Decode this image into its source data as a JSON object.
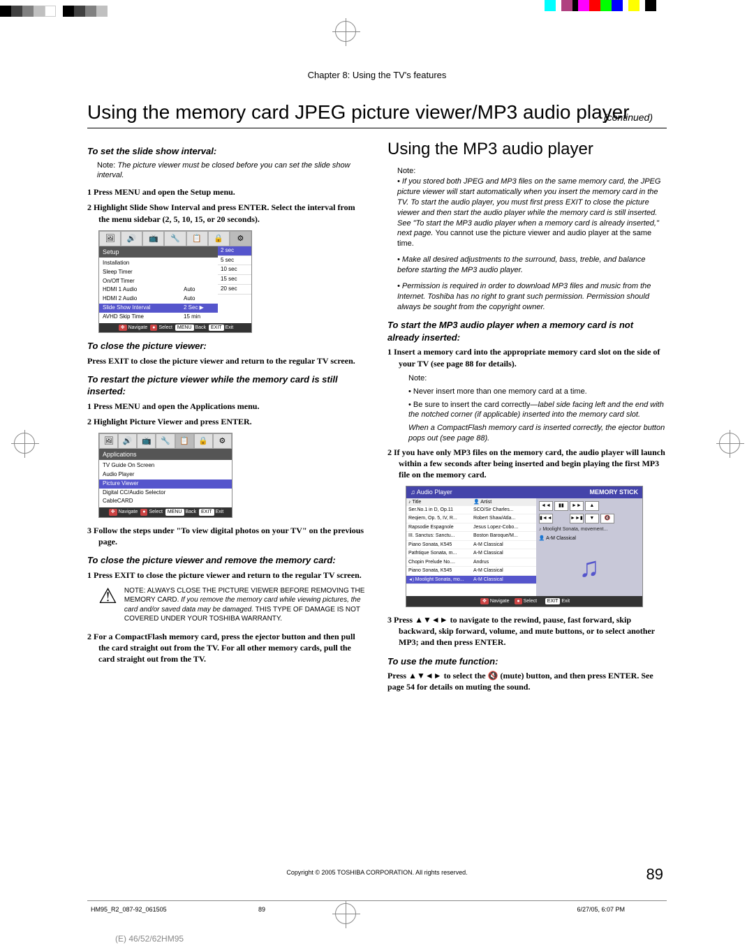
{
  "color_bars_left": [
    "#000000",
    "#404040",
    "#808080",
    "#c0c0c0",
    "#ffffff",
    "#000000",
    "#404040",
    "#808080",
    "#c0c0c0"
  ],
  "color_bars_right": [
    "#00ffff",
    "#ffffff",
    "#b04080",
    "#000000",
    "#ff00ff",
    "#ff0000",
    "#00ff00",
    "#0000ff",
    "#ffffff",
    "#ffff00",
    "#ffffff",
    "#000000"
  ],
  "chapter": "Chapter 8: Using the TV's features",
  "main_title": "Using the memory card JPEG picture viewer/MP3 audio player",
  "continued": "(continued)",
  "left": {
    "sec1_heading": "To set the slide show interval:",
    "note_label": "Note:",
    "note1": "The picture viewer must be closed before you can set the slide show interval.",
    "step1": "1 Press MENU and open the Setup menu.",
    "step2": "2 Highlight Slide Show Interval and press ENTER. Select the interval from the menu sidebar (2, 5, 10, 15, or 20 seconds).",
    "setup_menu": {
      "header": "Setup",
      "rows": [
        {
          "label": "Installation",
          "val": ""
        },
        {
          "label": "Sleep Timer",
          "val": ""
        },
        {
          "label": "On/Off Timer",
          "val": ""
        },
        {
          "label": "HDMI 1 Audio",
          "val": "Auto"
        },
        {
          "label": "HDMI 2 Audio",
          "val": "Auto"
        },
        {
          "label": "Slide Show Interval",
          "val": "2 Sec ▶",
          "highlight": true
        },
        {
          "label": "AVHD Skip Time",
          "val": "15 min"
        }
      ],
      "side_items": [
        "2 sec",
        "5 sec",
        "10 sec",
        "15 sec",
        "20 sec"
      ],
      "footer_nav": "Navigate",
      "footer_sel": "Select",
      "footer_back": "Back",
      "footer_exit": "Exit"
    },
    "sec2_heading": "To close the picture viewer:",
    "sec2_body": "Press EXIT to close the picture viewer and return to the regular TV screen.",
    "sec3_heading": "To restart the picture viewer while the memory card is still inserted:",
    "sec3_step1": "1 Press MENU and open the Applications menu.",
    "sec3_step2": "2 Highlight Picture Viewer and press ENTER.",
    "apps_menu": {
      "header": "Applications",
      "rows": [
        {
          "label": "TV Guide On Screen"
        },
        {
          "label": "Audio Player"
        },
        {
          "label": "Picture Viewer",
          "highlight": true
        },
        {
          "label": "Digital CC/Audio Selector"
        },
        {
          "label": "CableCARD"
        }
      ]
    },
    "sec3_step3": "3 Follow the steps under \"To view digital photos on your TV\" on the previous page.",
    "sec4_heading": "To close the picture viewer and remove the memory card:",
    "sec4_step1": "1 Press EXIT to close the picture viewer and return to the regular TV screen.",
    "caution_caps1": "NOTE: ALWAYS CLOSE THE PICTURE VIEWER BEFORE REMOVING THE MEMORY CARD.",
    "caution_italic": "If you remove the memory card while viewing pictures, the card and/or saved data may be damaged.",
    "caution_caps2": "THIS TYPE OF DAMAGE IS NOT COVERED UNDER YOUR TOSHIBA WARRANTY.",
    "sec4_step2": "2 For a CompactFlash memory card, press the ejector button and then pull the card straight out from the TV. For all other memory cards, pull the card straight out from the TV."
  },
  "right": {
    "title": "Using the MP3 audio player",
    "note_label": "Note:",
    "bullets": [
      {
        "italic": "If you stored both JPEG and MP3 files on the same memory card, the JPEG picture viewer will start automatically when you insert the memory card in the TV. To start the audio player, you must first press EXIT to close the picture viewer and then start the audio player while the memory card is still inserted. See \"To start the MP3 audio player when a memory card is already inserted,\" next page.",
        "normal": "You cannot use the picture viewer and audio player at the same time."
      },
      {
        "italic": "Make all desired adjustments to the surround, bass, treble, and balance before starting the MP3 audio player."
      },
      {
        "italic": "Permission is required in order to download MP3 files and music from the Internet. Toshiba has no right to grant such permission. Permission should always be sought from the copyright owner."
      }
    ],
    "sec1_heading": "To start the MP3 audio player when a memory card is not already inserted:",
    "sec1_step1": "1 Insert a memory card into the appropriate memory card slot on the side of your TV (see page 88 for details).",
    "sec1_note_label": "Note:",
    "sec1_sub1": "Never insert more than one memory card at a time.",
    "sec1_sub2_normal": "Be sure to insert the card correctly—",
    "sec1_sub2_italic": "label side facing left and the end with the notched corner (if applicable) inserted into the memory card slot.",
    "sec1_sub3": "When a CompactFlash memory card is inserted correctly, the ejector button pops out (see page 88).",
    "sec1_step2": "2 If you have only MP3 files on the memory card, the audio player will launch within a few seconds after being inserted and begin playing the first MP3 file on the memory card.",
    "audio_player": {
      "title": "♫ Audio Player",
      "badge": "MEMORY STICK",
      "th_title": "♪ Title",
      "th_artist": "👤 Artist",
      "rows": [
        {
          "title": "Ser.No.1 in D, Op.11",
          "artist": "SCO/Sir Charles..."
        },
        {
          "title": "Reqiem, Op. 5, IV, R...",
          "artist": "Robert Shaw/Atla..."
        },
        {
          "title": "Rapsodie Espagnole",
          "artist": "Jesus Lopez-Cobo..."
        },
        {
          "title": "III. Sanctus: Sanctu...",
          "artist": "Boston Baroque/M..."
        },
        {
          "title": "Piano Sonata, K545",
          "artist": "A-M Classical"
        },
        {
          "title": "Pathtique Sonata, m...",
          "artist": "A-M Classical"
        },
        {
          "title": "Chopin Prelude No....",
          "artist": "Andrus"
        },
        {
          "title": "Piano Sonata, K545",
          "artist": "A-M Classical"
        },
        {
          "title": "Moolight Sonata, mo...",
          "artist": "A-M Classical",
          "sel": true,
          "playing": true
        }
      ],
      "now_playing": "♪ Moolight Sonata, movement...",
      "artist": "👤 A-M Classical",
      "footer_nav": "Navigate",
      "footer_sel": "Select",
      "footer_exit": "Exit"
    },
    "sec1_step3": "3 Press  ▲▼◄► to navigate to the rewind, pause, fast forward, skip backward, skip forward, volume, and mute buttons, or to select another MP3; and then press ENTER.",
    "sec2_heading": "To use the mute function:",
    "sec2_body": "Press ▲▼◄► to select the 🔇 (mute) button, and then press ENTER. See page 54 for details on muting the sound."
  },
  "copyright": "Copyright © 2005 TOSHIBA CORPORATION. All rights reserved.",
  "page_number": "89",
  "footer_left": "HM95_R2_087-92_061505",
  "footer_center": "89",
  "footer_right": "6/27/05, 6:07 PM",
  "model_bottom": "(E) 46/52/62HM95"
}
